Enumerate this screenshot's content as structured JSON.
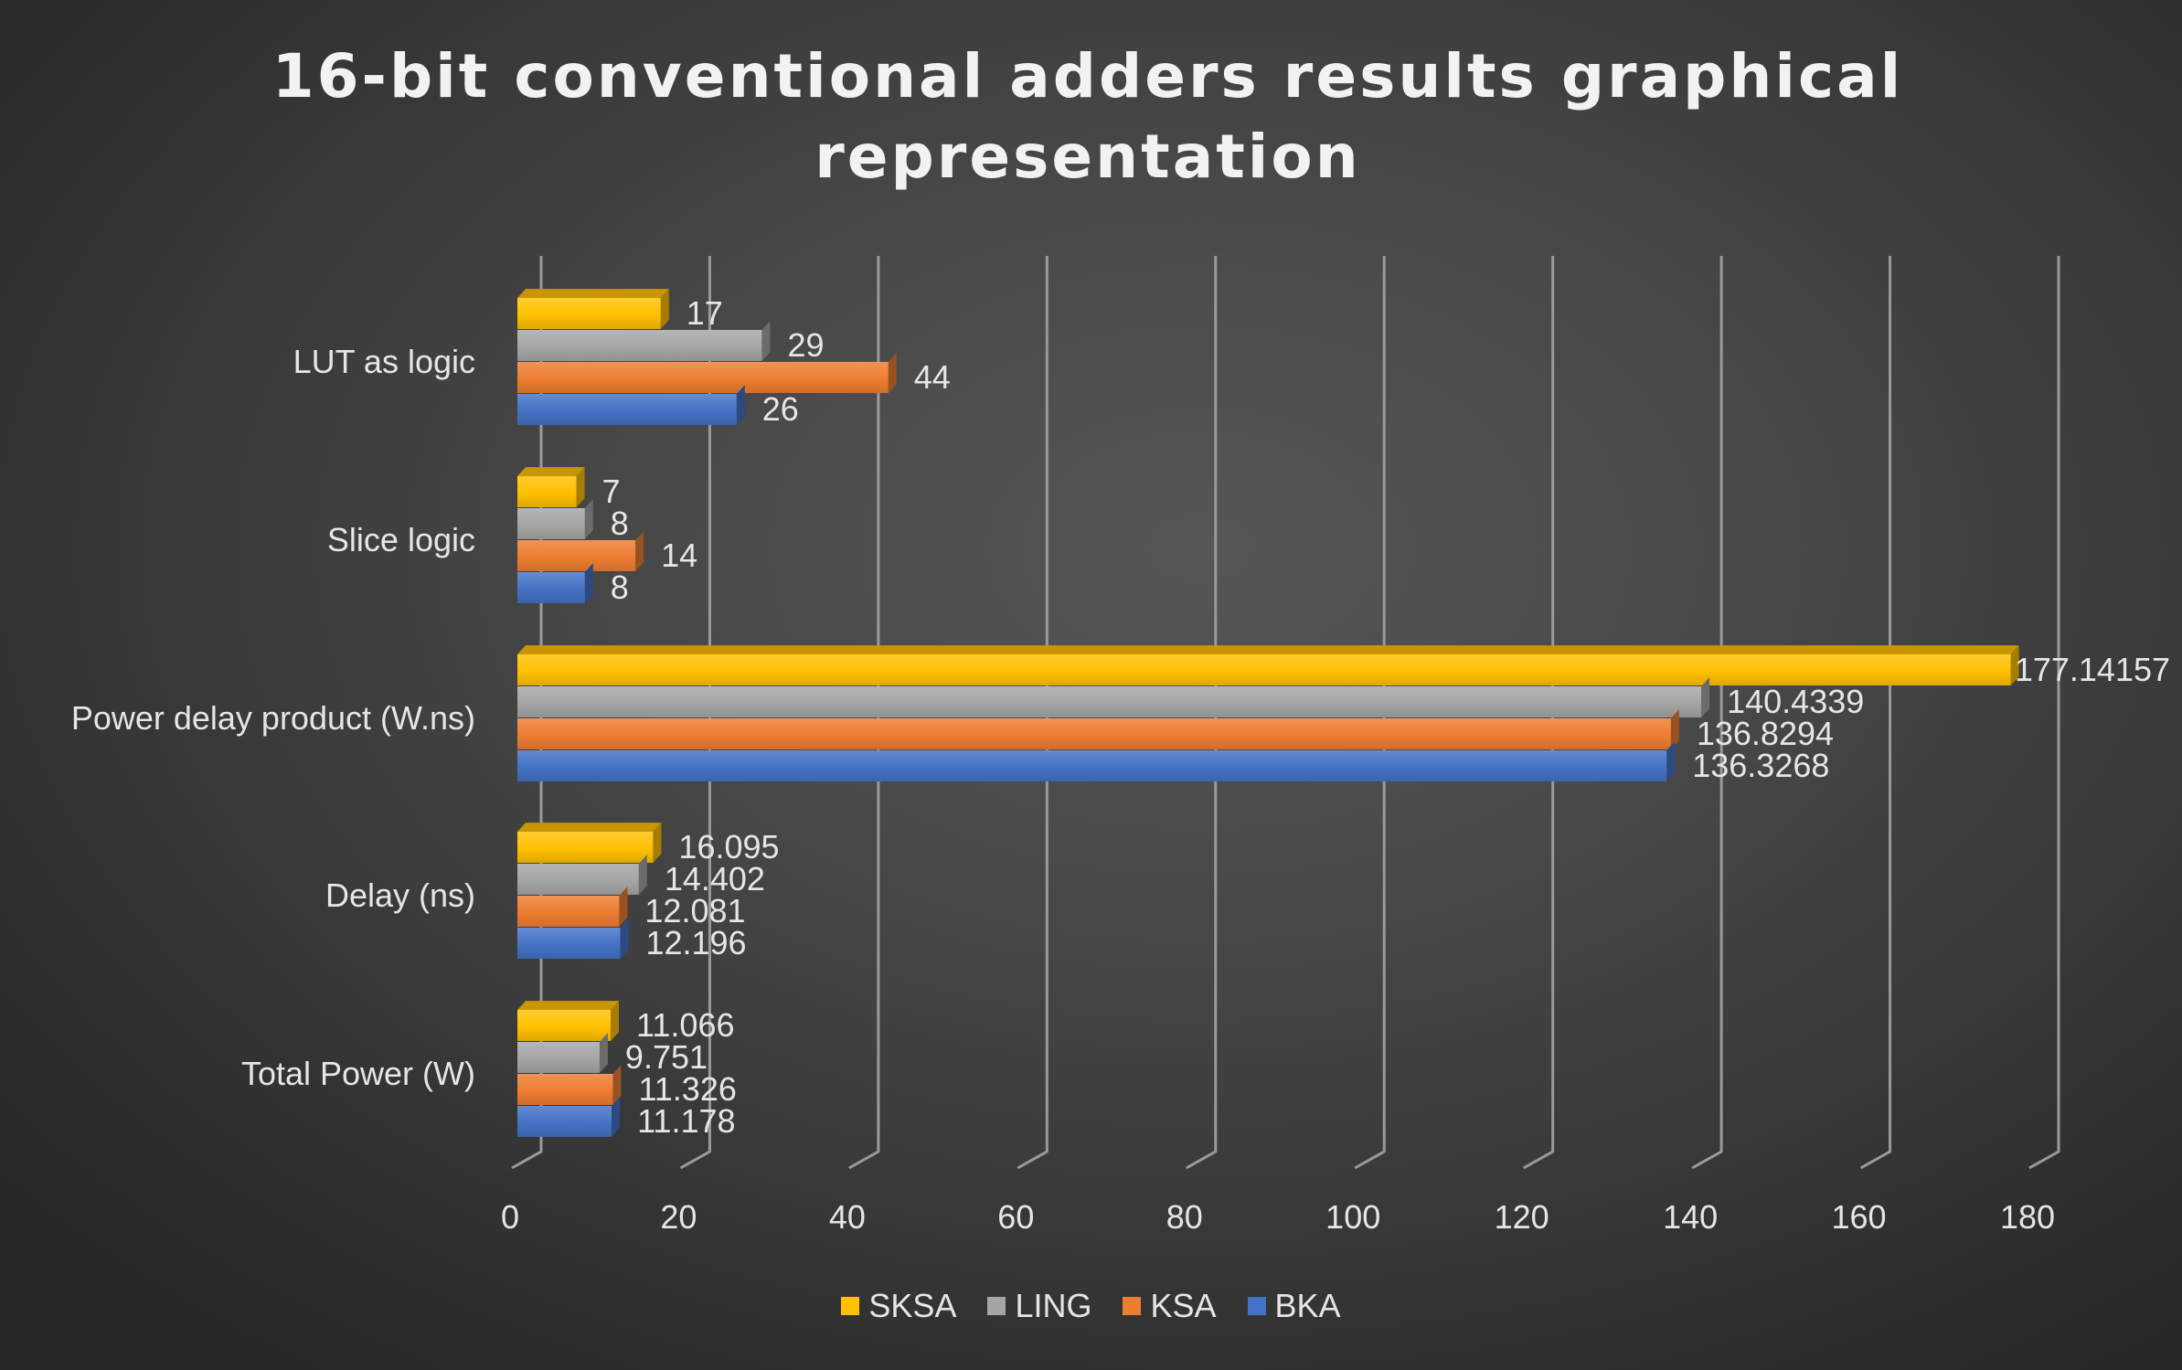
{
  "chart_data": {
    "type": "bar",
    "orientation": "horizontal",
    "title": "16-bit conventional adders results graphical representation",
    "categories": [
      "LUT as logic",
      "Slice logic",
      "Power delay product (W.ns)",
      "Delay (ns)",
      "Total Power (W)"
    ],
    "series": [
      {
        "name": "SKSA",
        "color": "#FFC000",
        "values": [
          17,
          7,
          177.14157,
          16.095,
          11.066
        ],
        "labels": [
          "17",
          "7",
          "177.14157",
          "16.095",
          "11.066"
        ]
      },
      {
        "name": "LING",
        "color": "#A5A5A5",
        "values": [
          29,
          8,
          140.4339,
          14.402,
          9.751
        ],
        "labels": [
          "29",
          "8",
          "140.4339",
          "14.402",
          "9.751"
        ]
      },
      {
        "name": "KSA",
        "color": "#ED7D31",
        "values": [
          44,
          14,
          136.8294,
          12.081,
          11.326
        ],
        "labels": [
          "44",
          "14",
          "136.8294",
          "12.081",
          "11.326"
        ]
      },
      {
        "name": "BKA",
        "color": "#4472C4",
        "values": [
          26,
          8,
          136.3268,
          12.196,
          11.178
        ],
        "labels": [
          "26",
          "8",
          "136.3268",
          "12.196",
          "11.178"
        ]
      }
    ],
    "xlim": [
      0,
      180
    ],
    "ticks": [
      0,
      20,
      40,
      60,
      80,
      100,
      120,
      140,
      160,
      180
    ],
    "tick_labels": [
      "0",
      "20",
      "40",
      "60",
      "80",
      "100",
      "120",
      "140",
      "160",
      "180"
    ],
    "grid": true,
    "legend_position": "bottom"
  }
}
